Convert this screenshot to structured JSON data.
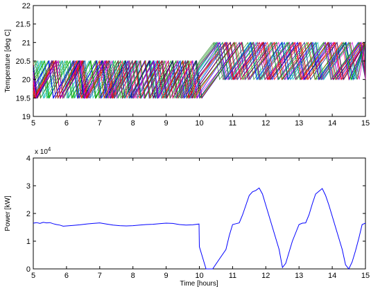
{
  "chart_data": [
    {
      "type": "line",
      "title": "",
      "xlabel": "",
      "ylabel": "Temperature [deg C]",
      "xlim": [
        5,
        15
      ],
      "ylim": [
        19,
        22
      ],
      "xticks": [
        "5",
        "6",
        "7",
        "8",
        "9",
        "10",
        "11",
        "12",
        "13",
        "14",
        "15"
      ],
      "yticks": [
        "19",
        "19.5",
        "20",
        "20.5",
        "21",
        "21.5",
        "22"
      ],
      "grid": false,
      "legend": "none",
      "description_of_series": "Many overlapping sawtooth temperature traces of building zones; band 19.5-20.5 before t=10 h, 20-21 after t=10 h",
      "series_colors": [
        "#0000ff",
        "#ff0000",
        "#00aa00",
        "#cc00cc",
        "#00bcbc",
        "#000080",
        "#228b22",
        "#b22222"
      ],
      "band_before": {
        "x_end": 10,
        "low": 19.5,
        "high": 20.5
      },
      "band_after": {
        "x_start": 10,
        "low": 20,
        "high": 21
      }
    },
    {
      "type": "line",
      "title": "",
      "xlabel": "Time [hours]",
      "ylabel": "Power [kW]",
      "xlim": [
        5,
        15
      ],
      "ylim": [
        0,
        40000
      ],
      "exponent_label": "x 10",
      "exponent_power": "4",
      "xticks": [
        "5",
        "6",
        "7",
        "8",
        "9",
        "10",
        "11",
        "12",
        "13",
        "14",
        "15"
      ],
      "yticks": [
        "0",
        "1",
        "2",
        "3",
        "4"
      ],
      "grid": false,
      "legend": "none",
      "series": [
        {
          "color": "#0000ff",
          "x": [
            5.0,
            5.1,
            5.2,
            5.3,
            5.4,
            5.5,
            5.6,
            5.7,
            5.8,
            5.9,
            6.0,
            6.2,
            6.4,
            6.6,
            6.8,
            7.0,
            7.2,
            7.4,
            7.6,
            7.8,
            8.0,
            8.2,
            8.4,
            8.6,
            8.8,
            9.0,
            9.2,
            9.4,
            9.6,
            9.8,
            9.99,
            10.0,
            10.1,
            10.2,
            10.4,
            10.6,
            10.8,
            10.9,
            11.0,
            11.1,
            11.2,
            11.3,
            11.4,
            11.5,
            11.6,
            11.7,
            11.8,
            11.9,
            12.0,
            12.1,
            12.2,
            12.3,
            12.4,
            12.5,
            12.6,
            12.7,
            12.8,
            12.9,
            13.0,
            13.1,
            13.2,
            13.3,
            13.4,
            13.5,
            13.6,
            13.7,
            13.8,
            13.9,
            14.0,
            14.1,
            14.2,
            14.3,
            14.4,
            14.5,
            14.6,
            14.7,
            14.8,
            14.9,
            15.0
          ],
          "y": [
            16500,
            16700,
            16400,
            16800,
            16600,
            16700,
            16300,
            16000,
            15800,
            15400,
            15500,
            15700,
            15900,
            16200,
            16400,
            16600,
            16200,
            15800,
            15600,
            15500,
            15600,
            15800,
            16000,
            16100,
            16300,
            16500,
            16400,
            16000,
            15800,
            15900,
            16200,
            8000,
            4000,
            0,
            0,
            3500,
            7000,
            12000,
            16000,
            16300,
            16600,
            19500,
            23000,
            26500,
            27800,
            28300,
            29200,
            27000,
            23000,
            19000,
            15000,
            11000,
            7000,
            500,
            2000,
            6000,
            10000,
            13000,
            16000,
            16500,
            16600,
            19500,
            23500,
            27000,
            28000,
            29000,
            26500,
            23000,
            19000,
            15000,
            11000,
            7000,
            1500,
            0,
            2500,
            6500,
            11000,
            16000,
            16500
          ]
        }
      ]
    }
  ]
}
